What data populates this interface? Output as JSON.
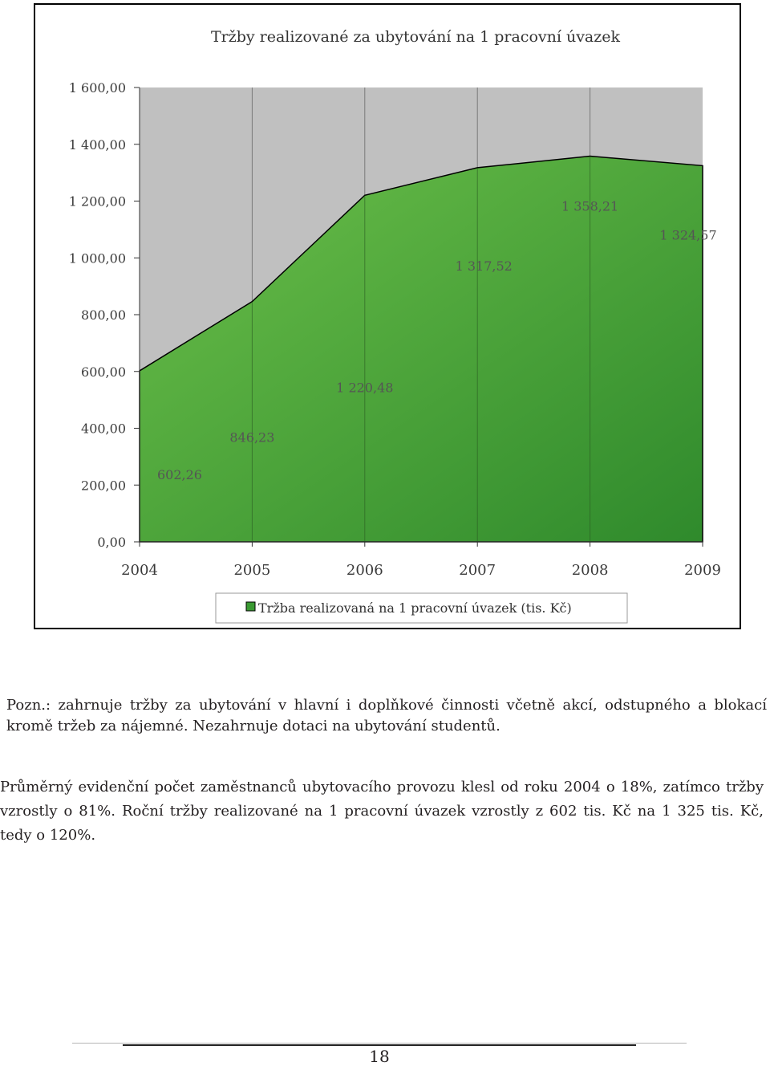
{
  "chart_data": {
    "type": "area",
    "title": "Tržby realizované za ubytování na 1 pracovní úvazek",
    "x": [
      "2004",
      "2005",
      "2006",
      "2007",
      "2008",
      "2009"
    ],
    "series": [
      {
        "name": "Tržba realizovaná na 1 pracovní úvazek (tis. Kč)",
        "values": [
          602.26,
          846.23,
          1220.48,
          1317.52,
          1358.21,
          1324.57
        ],
        "value_labels": [
          "602,26",
          "846,23",
          "1 220,48",
          "1 317,52",
          "1 358,21",
          "1 324,57"
        ],
        "color": "#3a9a32"
      }
    ],
    "y_ticks": [
      "0,00",
      "200,00",
      "400,00",
      "600,00",
      "800,00",
      "1 000,00",
      "1 200,00",
      "1 400,00",
      "1 600,00"
    ],
    "ylim": [
      0,
      1600
    ],
    "grid": "vertical",
    "legend": "bottom",
    "plot_background": "#c0c0c0"
  },
  "note": "Pozn.: zahrnuje tržby za ubytování v hlavní i doplňkové činnosti včetně akcí, odstupného a blokací kromě tržeb za nájemné. Nezahrnuje dotaci na ubytování studentů.",
  "summary": "Průměrný evidenční počet zaměstnanců ubytovacího provozu klesl od roku 2004 o 18%, zatímco tržby vzrostly o 81%. Roční tržby realizované na 1 pracovní úvazek vzrostly z 602 tis. Kč na 1 325 tis. Kč, tedy o 120%.",
  "page_number": "18"
}
